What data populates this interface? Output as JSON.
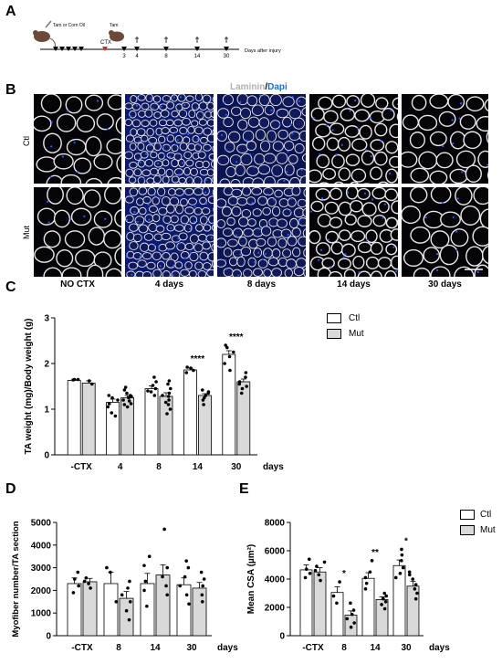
{
  "panels": {
    "A": "A",
    "B": "B",
    "C": "C",
    "D": "D",
    "E": "E"
  },
  "timeline": {
    "tam_or_corn_oil": "Tam or Corn Oil",
    "ctx": "CTX",
    "tam": "Tam",
    "days": [
      "3",
      "4",
      "8",
      "14",
      "30"
    ],
    "axis_label": "Days after injury",
    "colors": {
      "injection": "#000000",
      "ctx_marker": "#d62728"
    }
  },
  "micrographs": {
    "stain_prefix": "Laminin",
    "stain_slash": "/",
    "stain_suffix": "Dapi",
    "stain_colors": {
      "laminin": "#b0b0b0",
      "dapi": "#1a6fd6"
    },
    "rows": [
      "Ctl",
      "Mut"
    ],
    "columns": [
      "NO CTX",
      "4 days",
      "8 days",
      "14 days",
      "30 days"
    ]
  },
  "chart_data": [
    {
      "id": "C",
      "type": "bar",
      "ylabel": "TA weight (mg)/Body weight (g)",
      "xunit": "days",
      "categories": [
        "-CTX",
        "4",
        "8",
        "14",
        "30"
      ],
      "ylim": [
        0,
        3
      ],
      "yticks": [
        0,
        1,
        2,
        3
      ],
      "legend": [
        "Ctl",
        "Mut"
      ],
      "legend_position": "top-right",
      "series": [
        {
          "name": "Ctl",
          "color": "#ffffff",
          "values": [
            1.63,
            1.15,
            1.45,
            1.86,
            2.2
          ],
          "errors": [
            0.02,
            0.07,
            0.06,
            0.04,
            0.08
          ]
        },
        {
          "name": "Mut",
          "color": "#d9d9d9",
          "values": [
            1.57,
            1.25,
            1.28,
            1.3,
            1.6
          ],
          "errors": [
            0.05,
            0.05,
            0.08,
            0.04,
            0.06
          ]
        }
      ],
      "points": [
        [
          [
            1.64,
            1.65,
            1.65
          ],
          [
            1.55,
            1.62
          ]
        ],
        [
          [
            0.92,
            1.05,
            1.12,
            1.2,
            1.25,
            1.3,
            0.85
          ],
          [
            1.05,
            1.12,
            1.2,
            1.25,
            1.3,
            1.35,
            1.42,
            1.48,
            1.1,
            1.18,
            1.28
          ]
        ],
        [
          [
            1.3,
            1.38,
            1.45,
            1.52,
            1.6,
            1.7,
            1.4
          ],
          [
            0.9,
            1.0,
            1.1,
            1.2,
            1.28,
            1.35,
            1.45,
            1.55,
            1.62,
            1.15,
            1.3
          ]
        ],
        [
          [
            1.8,
            1.85,
            1.9,
            1.92
          ],
          [
            1.1,
            1.2,
            1.25,
            1.3,
            1.38,
            1.42,
            1.35
          ]
        ],
        [
          [
            1.85,
            2.0,
            2.15,
            2.25,
            2.35,
            2.4
          ],
          [
            1.35,
            1.45,
            1.55,
            1.6,
            1.7,
            1.8,
            1.5
          ]
        ]
      ],
      "significance": [
        "",
        "",
        "",
        "****",
        "****"
      ]
    },
    {
      "id": "D",
      "type": "bar",
      "ylabel": "Myofiber number/TA section",
      "xunit": "days",
      "categories": [
        "-CTX",
        "8",
        "14",
        "30"
      ],
      "ylim": [
        0,
        5000
      ],
      "yticks": [
        0,
        1000,
        2000,
        3000,
        4000,
        5000
      ],
      "series": [
        {
          "name": "Ctl",
          "color": "#ffffff",
          "values": [
            2300,
            2300,
            2300,
            2250
          ],
          "errors": [
            250,
            500,
            450,
            300
          ]
        },
        {
          "name": "Mut",
          "color": "#d9d9d9",
          "values": [
            2380,
            1650,
            2680,
            2100
          ],
          "errors": [
            150,
            300,
            450,
            250
          ]
        }
      ],
      "points": [
        [
          [
            1900,
            2200,
            2500,
            2800
          ],
          [
            2100,
            2300,
            2400,
            2550
          ]
        ],
        [
          [
            1500,
            2800,
            3000
          ],
          [
            700,
            1100,
            1500,
            1800,
            2100,
            2400
          ]
        ],
        [
          [
            1300,
            2000,
            2400,
            3100,
            3500
          ],
          [
            1800,
            2200,
            2600,
            3000,
            4700
          ]
        ],
        [
          [
            1400,
            1800,
            2200,
            2600,
            3000,
            3300
          ],
          [
            1500,
            1800,
            2200,
            2500,
            2800
          ]
        ]
      ],
      "significance": [
        "",
        "",
        "",
        ""
      ]
    },
    {
      "id": "E",
      "type": "bar",
      "ylabel": "Mean CSA (µm²)",
      "xunit": "days",
      "categories": [
        "-CTX",
        "8",
        "14",
        "30"
      ],
      "ylim": [
        0,
        8000
      ],
      "yticks": [
        0,
        2000,
        4000,
        6000,
        8000
      ],
      "legend": [
        "Ctl",
        "Mut"
      ],
      "legend_position": "top-right",
      "series": [
        {
          "name": "Ctl",
          "color": "#ffffff",
          "values": [
            4650,
            3050,
            4050,
            4950
          ],
          "errors": [
            350,
            400,
            400,
            400
          ]
        },
        {
          "name": "Mut",
          "color": "#d9d9d9",
          "values": [
            4500,
            1450,
            2550,
            3500
          ],
          "errors": [
            300,
            300,
            200,
            350
          ]
        }
      ],
      "points": [
        [
          [
            4100,
            4400,
            4700,
            5400
          ],
          [
            3900,
            4300,
            4600,
            4900,
            5200
          ]
        ],
        [
          [
            2300,
            2800,
            3800
          ],
          [
            600,
            900,
            1200,
            1500,
            1800,
            2300
          ]
        ],
        [
          [
            3300,
            3700,
            4100,
            4500,
            5300
          ],
          [
            1900,
            2200,
            2400,
            2600,
            2800,
            3000
          ]
        ],
        [
          [
            4100,
            4400,
            4800,
            5300,
            5700,
            6100
          ],
          [
            2600,
            3000,
            3300,
            3600,
            4000,
            4300,
            4500
          ]
        ]
      ],
      "significance": [
        "",
        "*",
        "**",
        "*"
      ]
    }
  ]
}
